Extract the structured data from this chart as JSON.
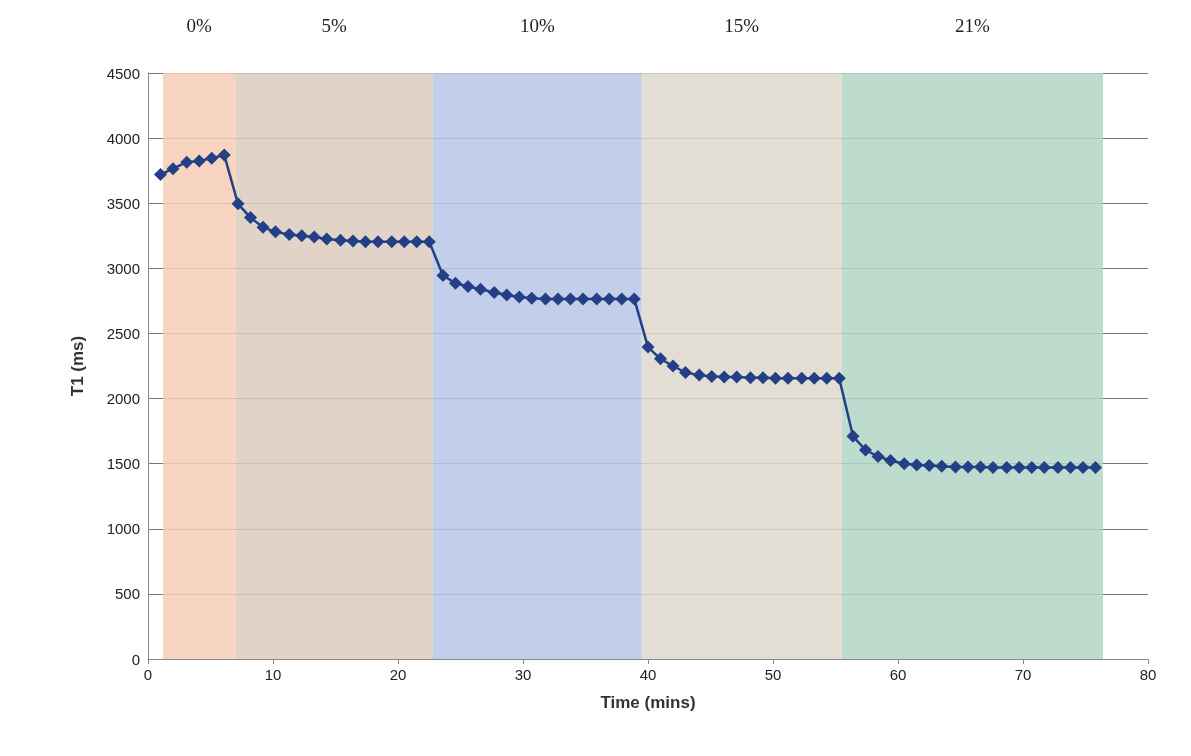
{
  "chart_data": {
    "type": "line",
    "xlabel": "Time (mins)",
    "ylabel": "T1 (ms)",
    "xlim": [
      0,
      80
    ],
    "xticks": [
      0,
      10,
      20,
      30,
      40,
      50,
      60,
      70,
      80
    ],
    "ylim": [
      0,
      4500
    ],
    "yticks": [
      0,
      500,
      1000,
      1500,
      2000,
      2500,
      3000,
      3500,
      4000,
      4500
    ],
    "grid": "y",
    "marker": "diamond",
    "line_style": "solid",
    "bands": [
      {
        "axis": "x",
        "from": 1.2,
        "to": 7.0,
        "label": "0%",
        "color": "#f6cdb4"
      },
      {
        "axis": "x",
        "from": 7.0,
        "to": 22.8,
        "label": "5%",
        "color": "#dccbbd"
      },
      {
        "axis": "x",
        "from": 22.8,
        "to": 39.5,
        "label": "10%",
        "color": "#b9c6e8"
      },
      {
        "axis": "x",
        "from": 39.5,
        "to": 55.5,
        "label": "15%",
        "color": "#ddd8cb"
      },
      {
        "axis": "x",
        "from": 55.5,
        "to": 76.4,
        "label": "21%",
        "color": "#b3d6c6"
      }
    ],
    "series": [
      {
        "color": "#233f86",
        "x": [
          1.0,
          2.0,
          3.1,
          4.1,
          5.1,
          6.1,
          7.2,
          8.2,
          9.2,
          10.2,
          11.3,
          12.3,
          13.3,
          14.3,
          15.4,
          16.4,
          17.4,
          18.4,
          19.5,
          20.5,
          21.5,
          22.5,
          23.6,
          24.6,
          25.6,
          26.6,
          27.7,
          28.7,
          29.7,
          30.7,
          31.8,
          32.8,
          33.8,
          34.8,
          35.9,
          36.9,
          37.9,
          38.9,
          40.0,
          41.0,
          42.0,
          43.0,
          44.1,
          45.1,
          46.1,
          47.1,
          48.2,
          49.2,
          50.2,
          51.2,
          52.3,
          53.3,
          54.3,
          55.3,
          56.4,
          57.4,
          58.4,
          59.4,
          60.5,
          61.5,
          62.5,
          63.5,
          64.6,
          65.6,
          66.6,
          67.6,
          68.7,
          69.7,
          70.7,
          71.7,
          72.8,
          73.8,
          74.8,
          75.8
        ],
        "values": [
          3720,
          3765,
          3815,
          3825,
          3845,
          3870,
          3495,
          3390,
          3315,
          3280,
          3260,
          3250,
          3240,
          3225,
          3215,
          3210,
          3205,
          3205,
          3205,
          3205,
          3205,
          3205,
          2945,
          2885,
          2860,
          2840,
          2815,
          2795,
          2780,
          2770,
          2765,
          2765,
          2765,
          2765,
          2765,
          2765,
          2765,
          2765,
          2395,
          2305,
          2250,
          2200,
          2180,
          2170,
          2165,
          2165,
          2160,
          2160,
          2155,
          2155,
          2155,
          2155,
          2155,
          2155,
          1710,
          1605,
          1555,
          1525,
          1500,
          1490,
          1485,
          1480,
          1475,
          1475,
          1475,
          1470,
          1470,
          1470,
          1470,
          1470,
          1470,
          1470,
          1470,
          1470
        ]
      }
    ]
  }
}
